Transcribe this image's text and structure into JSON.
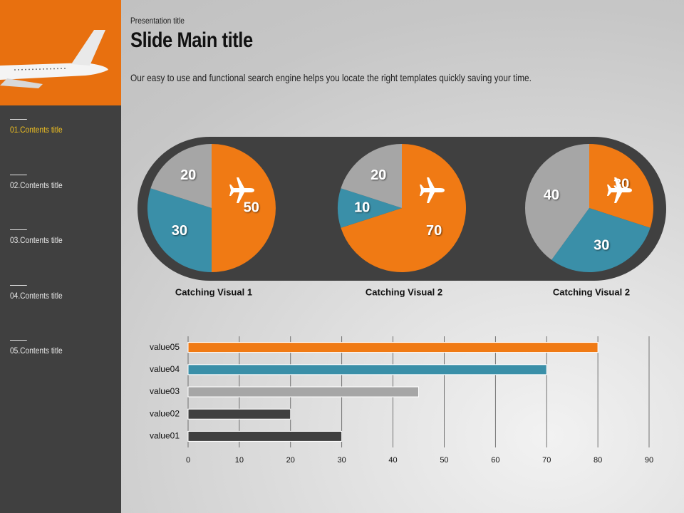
{
  "header": {
    "kicker": "Presentation title",
    "title": "Slide Main title",
    "body": "Our easy to use and functional search engine helps you locate the right templates quickly saving your time."
  },
  "sidebar": {
    "items": [
      "01.Contents title",
      "02.Contents title",
      "03.Contents title",
      "04.Contents title",
      "05.Contents title"
    ],
    "active": 0
  },
  "chart_data": [
    {
      "type": "pie",
      "title": "Catching Visual 1",
      "categories": [
        "orange",
        "blue",
        "gray"
      ],
      "values": [
        50,
        30,
        20
      ],
      "colors": [
        "#f07a14",
        "#3a8fa8",
        "#a6a6a6"
      ]
    },
    {
      "type": "pie",
      "title": "Catching Visual 2",
      "categories": [
        "orange",
        "blue",
        "gray"
      ],
      "values": [
        70,
        10,
        20
      ],
      "colors": [
        "#f07a14",
        "#3a8fa8",
        "#a6a6a6"
      ]
    },
    {
      "type": "pie",
      "title": "Catching Visual 2",
      "categories": [
        "orange",
        "blue",
        "gray"
      ],
      "values": [
        30,
        30,
        40
      ],
      "colors": [
        "#f07a14",
        "#3a8fa8",
        "#a6a6a6"
      ]
    },
    {
      "type": "hbar",
      "categories": [
        "value01",
        "value02",
        "value03",
        "value04",
        "value05"
      ],
      "values": [
        30,
        20,
        45,
        70,
        80
      ],
      "colors": [
        "#404040",
        "#404040",
        "#a6a6a6",
        "#3a8fa8",
        "#f07a14"
      ],
      "xlim": [
        0,
        90
      ],
      "xticks": [
        0,
        10,
        20,
        30,
        40,
        50,
        60,
        70,
        80,
        90
      ],
      "grid": true
    }
  ]
}
